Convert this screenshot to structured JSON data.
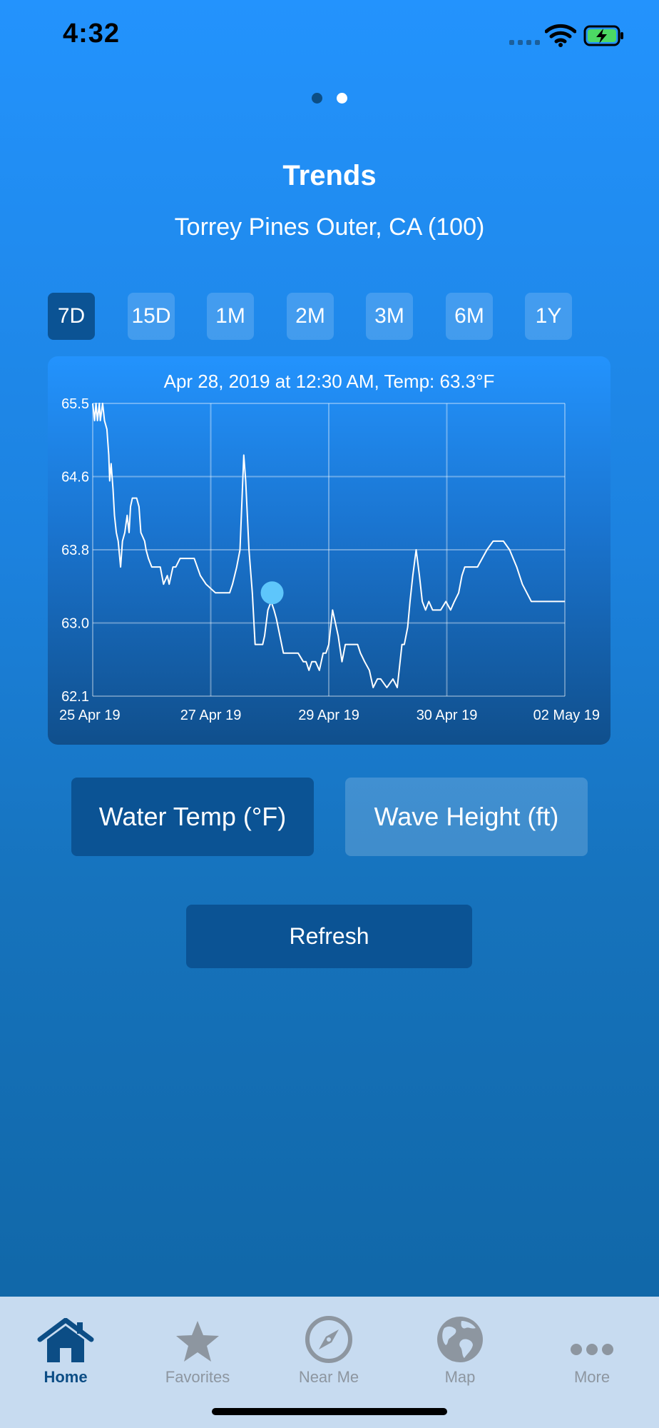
{
  "status": {
    "time": "4:32"
  },
  "header": {
    "title": "Trends",
    "subtitle": "Torrey Pines Outer, CA (100)"
  },
  "ranges": [
    {
      "label": "7D",
      "active": true
    },
    {
      "label": "15D",
      "active": false
    },
    {
      "label": "1M",
      "active": false
    },
    {
      "label": "2M",
      "active": false
    },
    {
      "label": "3M",
      "active": false
    },
    {
      "label": "6M",
      "active": false
    },
    {
      "label": "1Y",
      "active": false
    }
  ],
  "chart_data": {
    "type": "line",
    "header": "Apr 28, 2019 at 12:30 AM, Temp: 63.3°F",
    "ylim": [
      62.1,
      65.5
    ],
    "yticks": [
      "65.5",
      "64.6",
      "63.8",
      "63.0",
      "62.1"
    ],
    "xticks": [
      "25 Apr 19",
      "27 Apr 19",
      "29 Apr 19",
      "30 Apr 19",
      "02 May 19"
    ],
    "highlight": {
      "x": 0.38,
      "y": 63.3
    },
    "series": [
      {
        "x": [
          0.0,
          0.004,
          0.007,
          0.01,
          0.014,
          0.016,
          0.021,
          0.025,
          0.03,
          0.034,
          0.036,
          0.039,
          0.043,
          0.046,
          0.05,
          0.054,
          0.059,
          0.063,
          0.068,
          0.073,
          0.077,
          0.08,
          0.084,
          0.088,
          0.093,
          0.098,
          0.102,
          0.11,
          0.113,
          0.118,
          0.125,
          0.13,
          0.136,
          0.143,
          0.15,
          0.158,
          0.162,
          0.17,
          0.176,
          0.185,
          0.196,
          0.205,
          0.215,
          0.228,
          0.24,
          0.26,
          0.27,
          0.275,
          0.283,
          0.29,
          0.296,
          0.305,
          0.312,
          0.32,
          0.324,
          0.331,
          0.338,
          0.344,
          0.35,
          0.355,
          0.36,
          0.364,
          0.371,
          0.378,
          0.384,
          0.389,
          0.404,
          0.418,
          0.435,
          0.446,
          0.452,
          0.458,
          0.464,
          0.472,
          0.48,
          0.488,
          0.494,
          0.5,
          0.508,
          0.52,
          0.528,
          0.535,
          0.54,
          0.545,
          0.553,
          0.561,
          0.567,
          0.576,
          0.586,
          0.594,
          0.603,
          0.61,
          0.623,
          0.636,
          0.645,
          0.655,
          0.66,
          0.667,
          0.672,
          0.678,
          0.685,
          0.692,
          0.698,
          0.705,
          0.712,
          0.72,
          0.73,
          0.737,
          0.748,
          0.758,
          0.766,
          0.775,
          0.782,
          0.788,
          0.794,
          0.8,
          0.805,
          0.81,
          0.815,
          0.825,
          0.835,
          0.848,
          0.858,
          0.87,
          0.883,
          0.898,
          0.91,
          0.929,
          0.943,
          0.953,
          0.96,
          0.968,
          0.976,
          0.985,
          0.993,
          1.0
        ],
        "y": [
          65.5,
          65.3,
          65.5,
          65.3,
          65.5,
          65.3,
          65.5,
          65.3,
          65.2,
          64.9,
          64.6,
          64.8,
          64.5,
          64.2,
          64.0,
          63.9,
          63.6,
          63.9,
          64.0,
          64.2,
          64.0,
          64.3,
          64.4,
          64.4,
          64.4,
          64.3,
          64.0,
          63.9,
          63.8,
          63.7,
          63.6,
          63.6,
          63.6,
          63.6,
          63.4,
          63.5,
          63.4,
          63.6,
          63.6,
          63.7,
          63.7,
          63.7,
          63.7,
          63.5,
          63.4,
          63.3,
          63.3,
          63.3,
          63.3,
          63.3,
          63.4,
          63.6,
          63.8,
          64.9,
          64.6,
          63.8,
          63.3,
          62.7,
          62.7,
          62.7,
          62.7,
          62.8,
          63.1,
          63.2,
          63.1,
          63.0,
          62.6,
          62.6,
          62.6,
          62.5,
          62.5,
          62.4,
          62.5,
          62.5,
          62.4,
          62.6,
          62.6,
          62.7,
          63.1,
          62.8,
          62.5,
          62.7,
          62.7,
          62.7,
          62.7,
          62.7,
          62.6,
          62.5,
          62.4,
          62.2,
          62.3,
          62.3,
          62.2,
          62.3,
          62.2,
          62.7,
          62.7,
          62.9,
          63.2,
          63.5,
          63.8,
          63.5,
          63.2,
          63.1,
          63.2,
          63.1,
          63.1,
          63.1,
          63.2,
          63.1,
          63.2,
          63.3,
          63.5,
          63.6,
          63.6,
          63.6,
          63.6,
          63.6,
          63.6,
          63.7,
          63.8,
          63.9,
          63.9,
          63.9,
          63.8,
          63.6,
          63.4,
          63.2,
          63.2,
          63.2,
          63.2,
          63.2,
          63.2,
          63.2,
          63.2,
          63.2
        ]
      }
    ]
  },
  "metrics": {
    "water": "Water Temp (°F)",
    "wave": "Wave Height (ft)"
  },
  "refresh_label": "Refresh",
  "tabs": [
    {
      "label": "Home",
      "icon": "house-icon",
      "active": true
    },
    {
      "label": "Favorites",
      "icon": "star-icon",
      "active": false
    },
    {
      "label": "Near Me",
      "icon": "compass-icon",
      "active": false
    },
    {
      "label": "Map",
      "icon": "globe-icon",
      "active": false
    },
    {
      "label": "More",
      "icon": "ellipsis-icon",
      "active": false
    }
  ],
  "colors": {
    "accent": "#0b5394",
    "active_tab": "#0c4d85",
    "inactive_tab": "#8d96a0",
    "highlight_point": "#5ec6fb"
  }
}
